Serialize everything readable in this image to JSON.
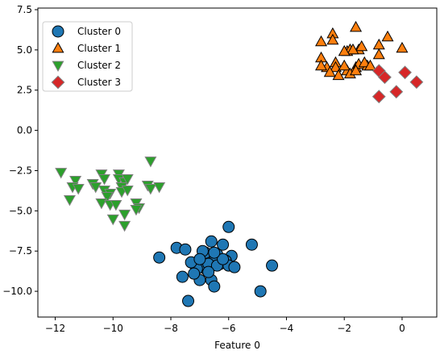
{
  "chart_data": {
    "type": "scatter",
    "title": "",
    "xlabel": "Feature 0",
    "ylabel": "",
    "xlim": [
      -12.6,
      1.2
    ],
    "ylim": [
      -11.6,
      7.6
    ],
    "xticks": [
      -12,
      -10,
      -8,
      -6,
      -4,
      -2,
      0
    ],
    "yticks": [
      -10.0,
      -7.5,
      -5.0,
      -2.5,
      0.0,
      2.5,
      5.0,
      7.5
    ],
    "xtick_labels": [
      "−12",
      "−10",
      "−8",
      "−6",
      "−4",
      "−2",
      "0"
    ],
    "ytick_labels": [
      "−10.0",
      "−7.5",
      "−5.0",
      "−2.5",
      "0.0",
      "2.5",
      "5.0",
      "7.5"
    ],
    "grid": false,
    "legend_position": "top-left",
    "series": [
      {
        "name": "Cluster 0",
        "marker": "circle",
        "color": "#1f77b4",
        "edge": "#000000",
        "points": [
          [
            -7.4,
            -10.6
          ],
          [
            -6.6,
            -9.3
          ],
          [
            -6.5,
            -9.7
          ],
          [
            -7.0,
            -9.3
          ],
          [
            -7.6,
            -9.1
          ],
          [
            -4.9,
            -10.0
          ],
          [
            -4.5,
            -8.4
          ],
          [
            -5.2,
            -7.1
          ],
          [
            -6.0,
            -6.0
          ],
          [
            -7.8,
            -7.3
          ],
          [
            -7.5,
            -7.4
          ],
          [
            -7.2,
            -8.3
          ],
          [
            -6.8,
            -8.6
          ],
          [
            -7.0,
            -8.4
          ],
          [
            -6.8,
            -7.6
          ],
          [
            -6.6,
            -6.9
          ],
          [
            -6.4,
            -7.7
          ],
          [
            -6.2,
            -7.1
          ],
          [
            -5.9,
            -7.8
          ],
          [
            -6.1,
            -8.1
          ],
          [
            -6.3,
            -8.3
          ],
          [
            -6.0,
            -8.4
          ],
          [
            -5.8,
            -8.5
          ],
          [
            -6.5,
            -8.1
          ],
          [
            -6.7,
            -8.3
          ],
          [
            -6.9,
            -7.5
          ],
          [
            -7.1,
            -8.6
          ],
          [
            -7.3,
            -8.2
          ],
          [
            -6.4,
            -8.4
          ],
          [
            -7.0,
            -8.0
          ],
          [
            -8.4,
            -7.9
          ],
          [
            -6.2,
            -8.0
          ],
          [
            -6.7,
            -8.8
          ],
          [
            -7.2,
            -8.9
          ],
          [
            -6.5,
            -7.6
          ]
        ]
      },
      {
        "name": "Cluster 1",
        "marker": "triangle-up",
        "color": "#ff7f0e",
        "edge": "#000000",
        "points": [
          [
            -2.4,
            6.0
          ],
          [
            -1.6,
            6.4
          ],
          [
            -0.5,
            5.8
          ],
          [
            -0.8,
            5.3
          ],
          [
            0.0,
            5.1
          ],
          [
            -2.8,
            5.5
          ],
          [
            -2.4,
            5.6
          ],
          [
            -1.9,
            4.9
          ],
          [
            -1.8,
            5.0
          ],
          [
            -1.5,
            5.0
          ],
          [
            -1.4,
            5.2
          ],
          [
            -1.7,
            5.0
          ],
          [
            -2.0,
            4.9
          ],
          [
            -2.8,
            4.5
          ],
          [
            -2.3,
            4.2
          ],
          [
            -2.3,
            3.9
          ],
          [
            -2.6,
            3.9
          ],
          [
            -1.9,
            3.7
          ],
          [
            -2.0,
            4.0
          ],
          [
            -1.6,
            3.9
          ],
          [
            -1.5,
            4.1
          ],
          [
            -1.2,
            4.0
          ],
          [
            -1.3,
            4.2
          ],
          [
            -2.2,
            3.4
          ],
          [
            -1.8,
            3.5
          ],
          [
            -1.6,
            3.7
          ],
          [
            -2.5,
            3.6
          ],
          [
            -0.8,
            4.7
          ],
          [
            -1.1,
            4.0
          ],
          [
            -2.8,
            4.0
          ]
        ]
      },
      {
        "name": "Cluster 2",
        "marker": "triangle-down",
        "color": "#2ca02c",
        "edge": "#808080",
        "points": [
          [
            -11.8,
            -2.6
          ],
          [
            -11.3,
            -3.1
          ],
          [
            -11.4,
            -3.5
          ],
          [
            -11.2,
            -3.6
          ],
          [
            -11.5,
            -4.3
          ],
          [
            -10.7,
            -3.3
          ],
          [
            -10.6,
            -3.5
          ],
          [
            -10.4,
            -2.7
          ],
          [
            -10.3,
            -3.0
          ],
          [
            -10.3,
            -3.7
          ],
          [
            -10.1,
            -3.9
          ],
          [
            -10.2,
            -4.1
          ],
          [
            -10.4,
            -4.5
          ],
          [
            -10.1,
            -4.6
          ],
          [
            -10.0,
            -5.5
          ],
          [
            -9.8,
            -2.7
          ],
          [
            -9.8,
            -3.0
          ],
          [
            -9.6,
            -3.2
          ],
          [
            -9.7,
            -3.5
          ],
          [
            -9.7,
            -3.8
          ],
          [
            -9.5,
            -3.7
          ],
          [
            -9.5,
            -3.0
          ],
          [
            -9.6,
            -5.2
          ],
          [
            -9.6,
            -5.9
          ],
          [
            -9.2,
            -4.5
          ],
          [
            -9.1,
            -4.8
          ],
          [
            -9.2,
            -4.9
          ],
          [
            -8.8,
            -3.4
          ],
          [
            -8.7,
            -3.6
          ],
          [
            -8.7,
            -1.9
          ],
          [
            -8.4,
            -3.5
          ],
          [
            -9.9,
            -4.6
          ]
        ]
      },
      {
        "name": "Cluster 3",
        "marker": "diamond",
        "color": "#d62728",
        "edge": "#808080",
        "points": [
          [
            -0.8,
            3.7
          ],
          [
            -0.6,
            3.3
          ],
          [
            0.1,
            3.6
          ],
          [
            0.5,
            3.0
          ],
          [
            -0.2,
            2.4
          ],
          [
            -0.8,
            2.1
          ]
        ]
      }
    ]
  }
}
